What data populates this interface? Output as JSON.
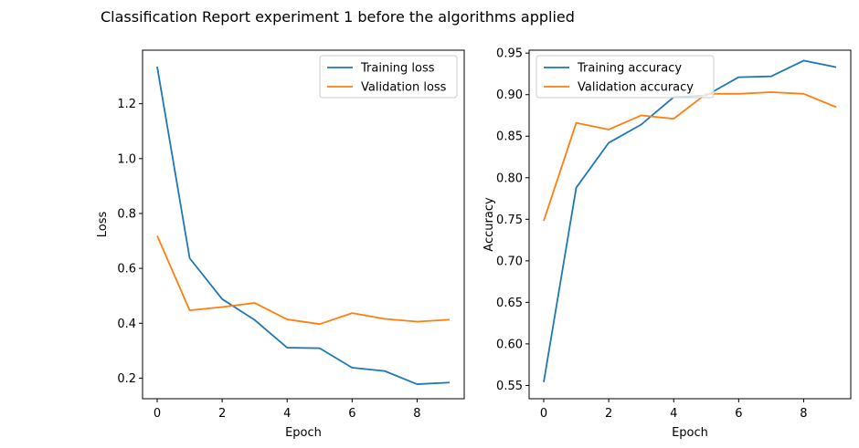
{
  "figure_title": "Classification Report  experiment 1 before the algorithms applied",
  "colors": {
    "series1": "#1f77b4",
    "series2": "#ff7f0e"
  },
  "chart_data": [
    {
      "type": "line",
      "xlabel": "Epoch",
      "ylabel": "Loss",
      "xlim": [
        -0.45,
        9.45
      ],
      "ylim": [
        0.125,
        1.395
      ],
      "xticks": [
        0,
        2,
        4,
        6,
        8
      ],
      "xtick_labels": [
        "0",
        "2",
        "4",
        "6",
        "8"
      ],
      "yticks": [
        0.2,
        0.4,
        0.6,
        0.8,
        1.0,
        1.2
      ],
      "ytick_labels": [
        "0.2",
        "0.4",
        "0.6",
        "0.8",
        "1.0",
        "1.2"
      ],
      "legend_position": "upper right",
      "x": [
        0,
        1,
        2,
        3,
        4,
        5,
        6,
        7,
        8,
        9
      ],
      "series": [
        {
          "name": "Training loss",
          "color": "#1f77b4",
          "values": [
            1.335,
            0.637,
            0.488,
            0.412,
            0.311,
            0.309,
            0.238,
            0.226,
            0.178,
            0.184
          ]
        },
        {
          "name": "Validation loss",
          "color": "#ff7f0e",
          "values": [
            0.719,
            0.447,
            0.459,
            0.474,
            0.414,
            0.397,
            0.437,
            0.416,
            0.406,
            0.413
          ]
        }
      ]
    },
    {
      "type": "line",
      "xlabel": "Epoch",
      "ylabel": "Accuracy",
      "xlim": [
        -0.45,
        9.45
      ],
      "ylim": [
        0.534,
        0.9535
      ],
      "xticks": [
        0,
        2,
        4,
        6,
        8
      ],
      "xtick_labels": [
        "0",
        "2",
        "4",
        "6",
        "8"
      ],
      "yticks": [
        0.55,
        0.6,
        0.65,
        0.7,
        0.75,
        0.8,
        0.85,
        0.9,
        0.95
      ],
      "ytick_labels": [
        "0.55",
        "0.60",
        "0.65",
        "0.70",
        "0.75",
        "0.80",
        "0.85",
        "0.90",
        "0.95"
      ],
      "legend_position": "upper left",
      "x": [
        0,
        1,
        2,
        3,
        4,
        5,
        6,
        7,
        8,
        9
      ],
      "series": [
        {
          "name": "Training accuracy",
          "color": "#1f77b4",
          "values": [
            0.554,
            0.788,
            0.842,
            0.864,
            0.897,
            0.899,
            0.921,
            0.922,
            0.941,
            0.933
          ]
        },
        {
          "name": "Validation accuracy",
          "color": "#ff7f0e",
          "values": [
            0.748,
            0.866,
            0.858,
            0.875,
            0.871,
            0.901,
            0.901,
            0.903,
            0.901,
            0.885
          ]
        }
      ]
    }
  ]
}
